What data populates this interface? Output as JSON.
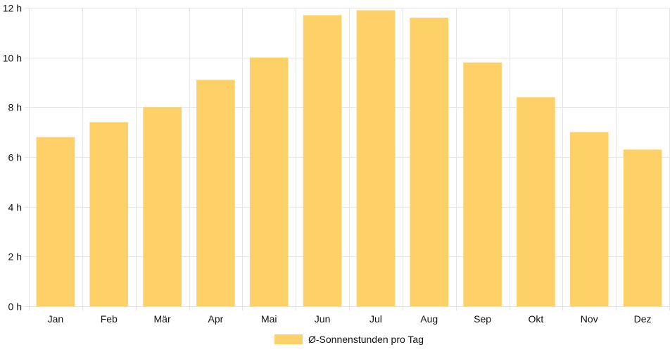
{
  "chart_data": {
    "type": "bar",
    "categories": [
      "Jan",
      "Feb",
      "Mär",
      "Apr",
      "Mai",
      "Jun",
      "Jul",
      "Aug",
      "Sep",
      "Okt",
      "Nov",
      "Dez"
    ],
    "series": [
      {
        "name": "Ø-Sonnenstunden pro Tag",
        "values": [
          6.8,
          7.4,
          8.0,
          9.1,
          10.0,
          11.7,
          11.9,
          11.6,
          9.8,
          8.4,
          7.0,
          6.3
        ],
        "color": "#fdd068"
      }
    ],
    "ylim": [
      0,
      12
    ],
    "yticks": [
      0,
      2,
      4,
      6,
      8,
      10,
      12
    ],
    "ytick_suffix": " h",
    "grid": true,
    "legend_position": "bottom"
  }
}
